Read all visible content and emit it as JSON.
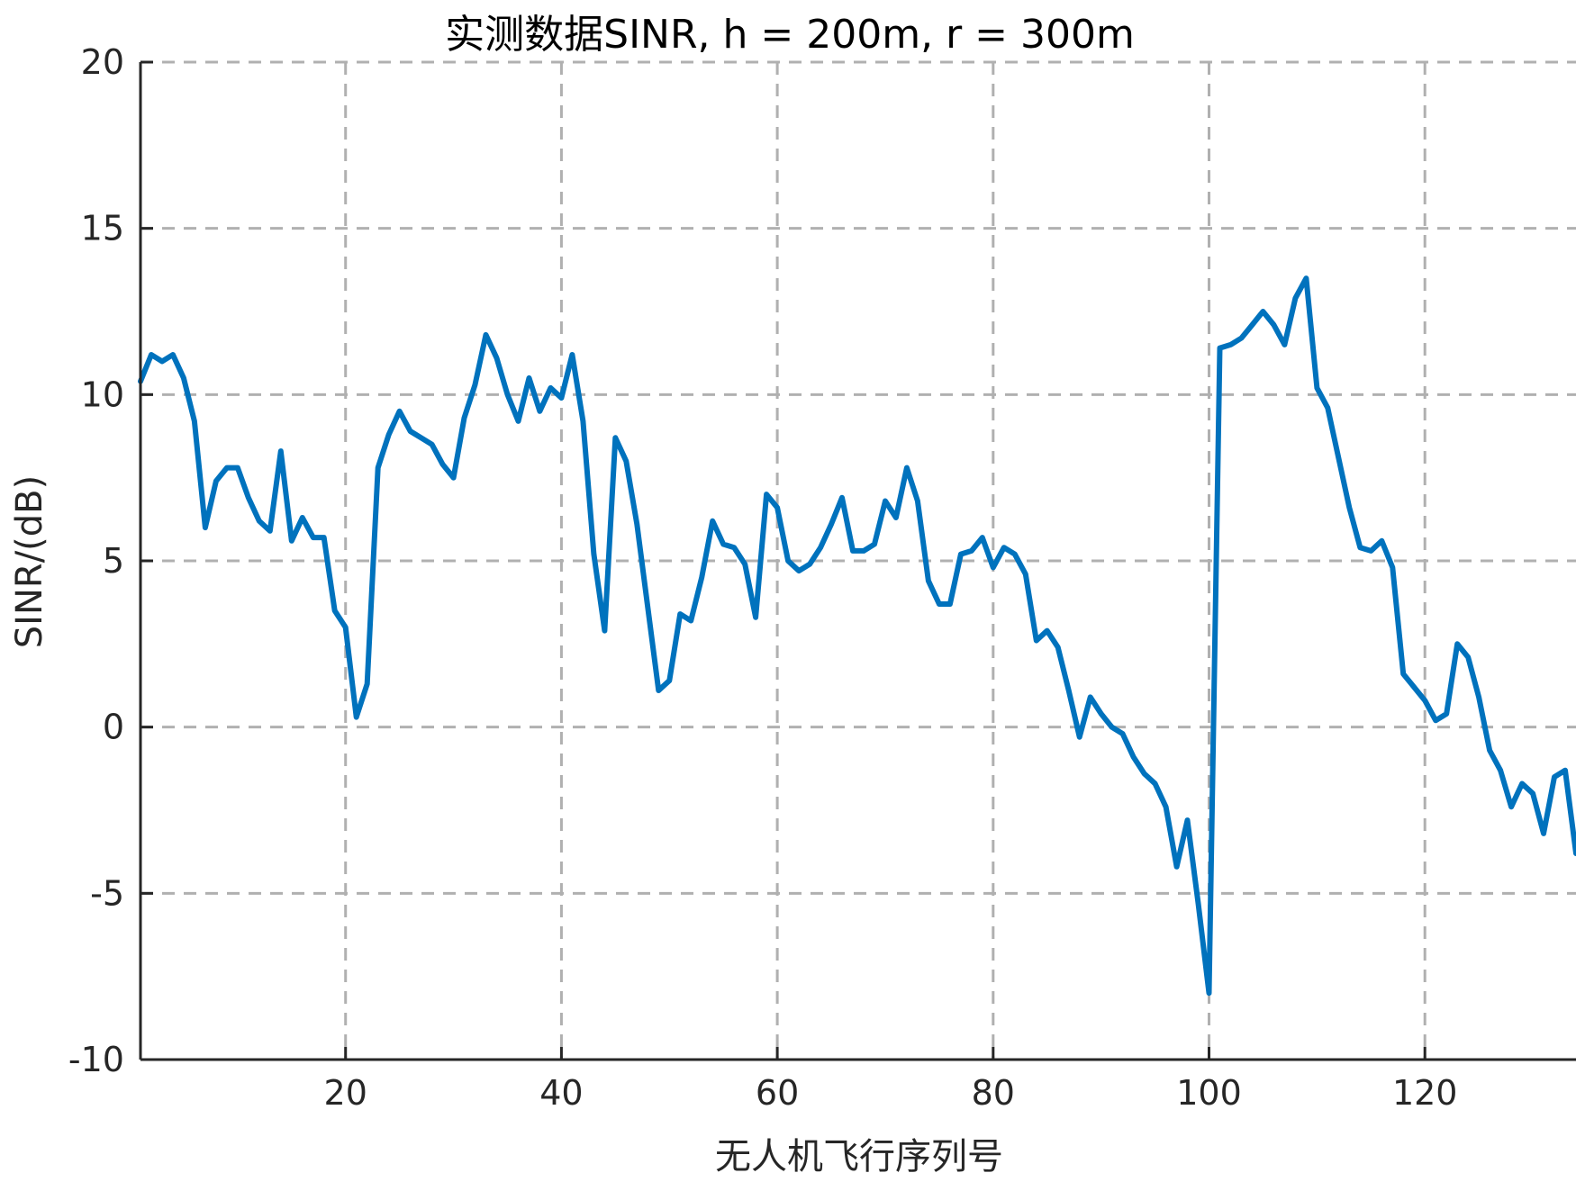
{
  "chart_data": {
    "type": "line",
    "title": "实测数据SINR, h = 200m, r = 300m",
    "xlabel": "无人机飞行序列号",
    "ylabel": "SINR/(dB)",
    "xlim": [
      1,
      134
    ],
    "ylim": [
      -10,
      20
    ],
    "xticks": [
      20,
      40,
      60,
      80,
      100,
      120
    ],
    "yticks": [
      -10,
      -5,
      0,
      5,
      10,
      15,
      20
    ],
    "xtick_labels": [
      "20",
      "40",
      "60",
      "80",
      "100",
      "120"
    ],
    "ytick_labels": [
      "-10",
      "-5",
      "0",
      "5",
      "10",
      "15",
      "20"
    ],
    "grid": true,
    "series_color": "#0072BD",
    "series": [
      {
        "x": [
          1,
          2,
          3,
          4,
          5,
          6,
          7,
          8,
          9,
          10,
          11,
          12,
          13,
          14,
          15,
          16,
          17,
          18,
          19,
          20,
          21,
          22,
          23,
          24,
          25,
          26,
          27,
          28,
          29,
          30,
          31,
          32,
          33,
          34,
          35,
          36,
          37,
          38,
          39,
          40,
          41,
          42,
          43,
          44,
          45,
          46,
          47,
          48,
          49,
          50,
          51,
          52,
          53,
          54,
          55,
          56,
          57,
          58,
          59,
          60,
          61,
          62,
          63,
          64,
          65,
          66,
          67,
          68,
          69,
          70,
          71,
          72,
          73,
          74,
          75,
          76,
          77,
          78,
          79,
          80,
          81,
          82,
          83,
          84,
          85,
          86,
          87,
          88,
          89,
          90,
          91,
          92,
          93,
          94,
          95,
          96,
          97,
          98,
          99,
          100,
          101,
          102,
          103,
          104,
          105,
          106,
          107,
          108,
          109,
          110,
          111,
          112,
          113,
          114,
          115,
          116,
          117,
          118,
          119,
          120,
          121,
          122,
          123,
          124,
          125,
          126,
          127,
          128,
          129,
          130,
          131,
          132,
          133,
          134
        ],
        "y": [
          10.4,
          11.2,
          11.0,
          11.2,
          10.5,
          9.2,
          6.0,
          7.4,
          7.8,
          7.8,
          6.9,
          6.2,
          5.9,
          8.3,
          5.6,
          6.3,
          5.7,
          5.7,
          3.5,
          3.0,
          0.3,
          1.3,
          7.8,
          8.8,
          9.5,
          8.9,
          8.7,
          8.5,
          7.9,
          7.5,
          9.3,
          10.3,
          11.8,
          11.1,
          10.0,
          9.2,
          10.5,
          9.5,
          10.2,
          9.9,
          11.2,
          9.2,
          5.2,
          2.9,
          8.7,
          8.0,
          6.1,
          3.6,
          1.1,
          1.4,
          3.4,
          3.2,
          4.5,
          6.2,
          5.5,
          5.4,
          4.9,
          3.3,
          7.0,
          6.6,
          5.0,
          4.7,
          4.9,
          5.4,
          6.1,
          6.9,
          5.3,
          5.3,
          5.5,
          6.8,
          6.3,
          7.8,
          6.8,
          4.4,
          3.7,
          3.7,
          5.2,
          5.3,
          5.7,
          4.8,
          5.4,
          5.2,
          4.6,
          2.6,
          2.9,
          2.4,
          1.1,
          -0.3,
          0.9,
          0.4,
          0.0,
          -0.2,
          -0.9,
          -1.4,
          -1.7,
          -2.4,
          -4.2,
          -2.8,
          -5.3,
          -8.0,
          11.4,
          11.5,
          11.7,
          12.1,
          12.5,
          12.1,
          11.5,
          12.9,
          13.5,
          10.2,
          9.6,
          8.1,
          6.6,
          5.4,
          5.3,
          5.6,
          4.8,
          1.6,
          1.2,
          0.8,
          0.2,
          0.4,
          2.5,
          2.1,
          0.9,
          -0.7,
          -1.3,
          -2.4,
          -1.7,
          -2.0,
          -3.2,
          -1.5,
          -1.3,
          -3.8
        ]
      }
    ]
  }
}
